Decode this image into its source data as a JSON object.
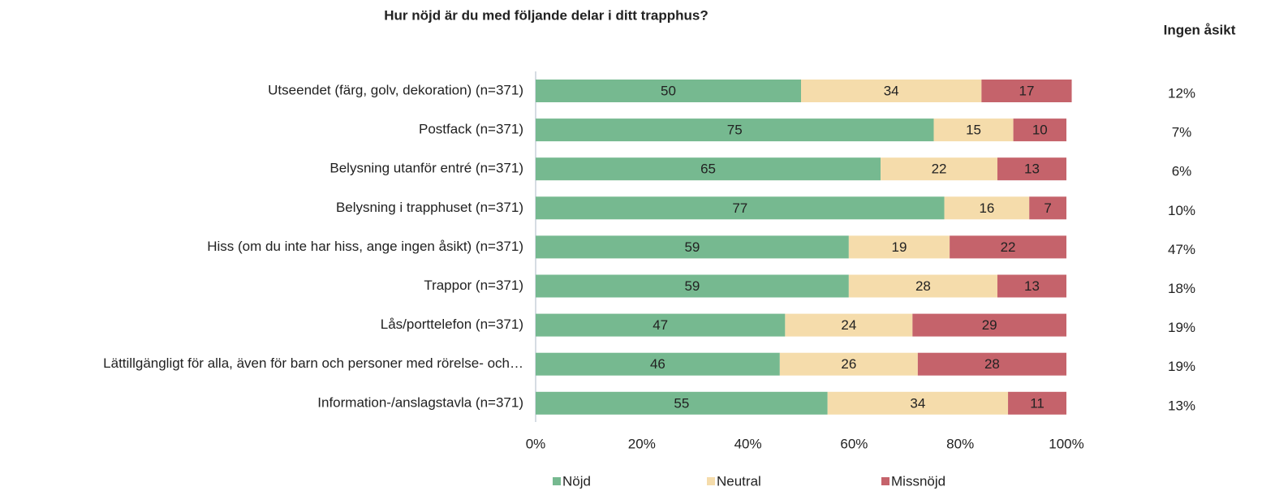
{
  "chart_data": {
    "type": "stacked_barh",
    "title": "Hur nöjd är du med följande delar i ditt trapphus?",
    "categories": [
      "Utseendet (färg, golv, dekoration) (n=371)",
      "Postfack (n=371)",
      "Belysning utanför entré (n=371)",
      "Belysning i trapphuset (n=371)",
      "Hiss (om du inte har hiss, ange ingen åsikt) (n=371)",
      "Trappor (n=371)",
      "Lås/porttelefon (n=371)",
      "Lättillgängligt för alla, även för barn och personer med rörelse- och…",
      "Information-/anslagstavla (n=371)"
    ],
    "series": [
      {
        "name": "Nöjd",
        "color": "#76b990",
        "values": [
          50,
          75,
          65,
          77,
          59,
          59,
          47,
          46,
          55
        ]
      },
      {
        "name": "Neutral",
        "color": "#f5dcab",
        "values": [
          34,
          15,
          22,
          16,
          19,
          28,
          24,
          26,
          34
        ]
      },
      {
        "name": "Missnöjd",
        "color": "#c5636b",
        "values": [
          17,
          10,
          13,
          7,
          22,
          13,
          29,
          28,
          11
        ]
      }
    ],
    "xlim": [
      0,
      100
    ],
    "xticks": [
      {
        "value": 0,
        "label": "0%"
      },
      {
        "value": 20,
        "label": "20%"
      },
      {
        "value": 40,
        "label": "40%"
      },
      {
        "value": 60,
        "label": "60%"
      },
      {
        "value": 80,
        "label": "80%"
      },
      {
        "value": 100,
        "label": "100%"
      }
    ],
    "side_column": {
      "title": "Ingen åsikt",
      "values": [
        12,
        7,
        6,
        10,
        47,
        18,
        19,
        19,
        13
      ],
      "value_labels": [
        "12%",
        "7%",
        "6%",
        "10%",
        "47%",
        "18%",
        "19%",
        "19%",
        "13%"
      ]
    },
    "legend": "bottom"
  }
}
